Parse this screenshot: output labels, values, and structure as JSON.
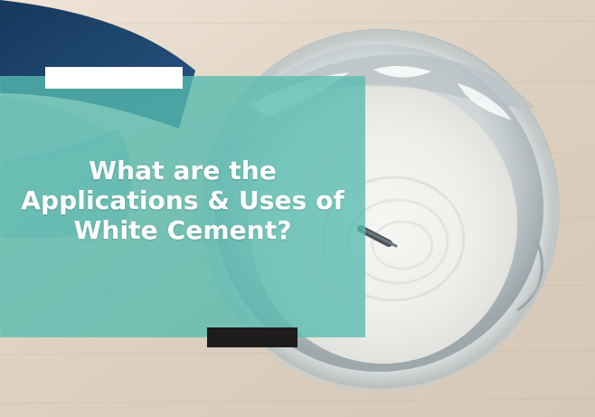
{
  "headline": {
    "line1": "What are the",
    "line2": "Applications & Uses of",
    "line3": "White Cement?"
  },
  "colors": {
    "overlay": "#56bbb0",
    "accent_white": "#ffffff",
    "accent_dark": "#1e1b1b",
    "headline_text": "#ffffff"
  }
}
